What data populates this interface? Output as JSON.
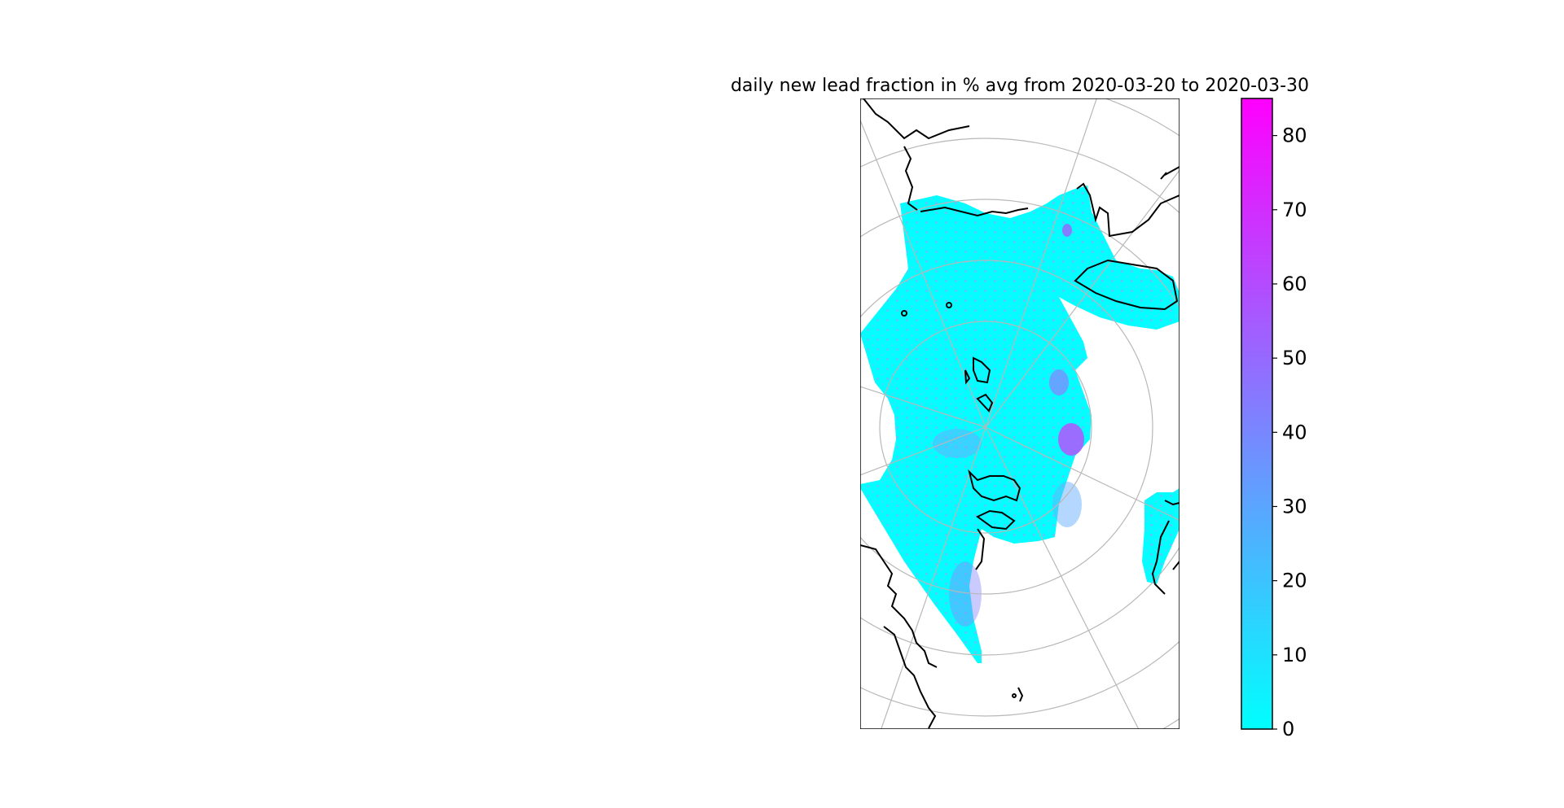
{
  "map": {
    "title": "daily new lead fraction in % avg from 2020-03-20 to 2020-03-30",
    "projection": "north polar stereographic",
    "gridlines": true,
    "coastlines": true,
    "colormap": "cool"
  },
  "colorbar": {
    "min": 0,
    "max": 85,
    "ticks": [
      "0",
      "10",
      "20",
      "30",
      "40",
      "50",
      "60",
      "70",
      "80"
    ],
    "color_low": "#00ffff",
    "color_high": "#ff00ff"
  },
  "colors": {
    "ice_base": "#00ffff",
    "ice_mid": "#55ccff",
    "ice_high": "#b455ff",
    "coastline": "#000000",
    "gridline": "#b8b8b8"
  }
}
